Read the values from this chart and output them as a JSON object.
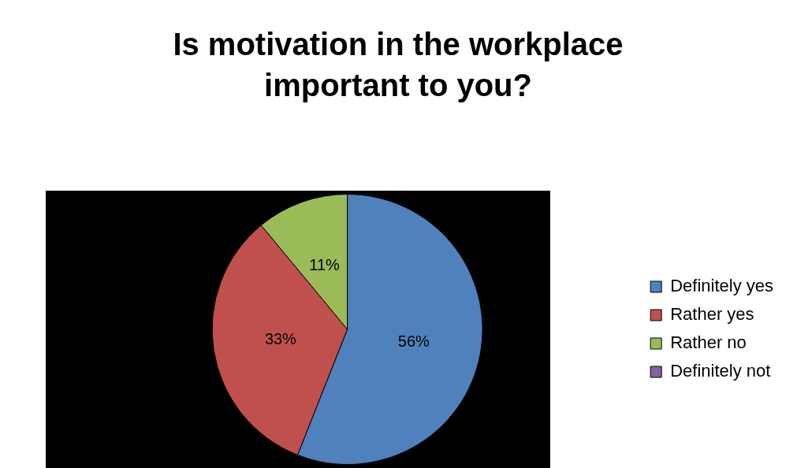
{
  "chart_data": {
    "type": "pie",
    "title": "Is motivation in the workplace important to you?",
    "categories": [
      "Definitely yes",
      "Rather yes",
      "Rather no",
      "Definitely not"
    ],
    "values": [
      56,
      33,
      11,
      0
    ],
    "colors": [
      "#4f81bd",
      "#c0504d",
      "#9bbb59",
      "#8064a2"
    ],
    "value_labels": [
      "56%",
      "33%",
      "11%",
      null
    ],
    "legend": "right"
  }
}
